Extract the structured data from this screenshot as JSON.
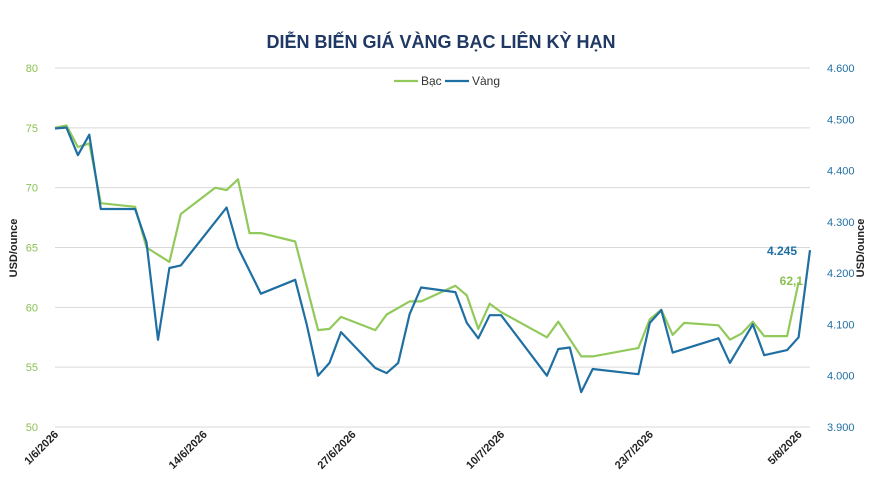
{
  "chart_data": {
    "type": "line",
    "title": "DIỄN BIẾN GIÁ VÀNG BẠC LIÊN KỲ HẠN",
    "ylabel_left": "USD/ounce",
    "ylabel_right": "USD/ounce",
    "ylim_left": [
      50,
      80
    ],
    "ylim_right": [
      3900,
      4600
    ],
    "yticks_left": [
      "50",
      "55",
      "60",
      "65",
      "70",
      "75",
      "80"
    ],
    "yticks_right": [
      "3.900",
      "4.000",
      "4.100",
      "4.200",
      "4.300",
      "4.400",
      "4.500",
      "4.600"
    ],
    "x_tick_labels": [
      "1/6/2026",
      "14/6/2026",
      "27/6/2026",
      "10/7/2026",
      "23/7/2026",
      "5/8/2026"
    ],
    "x_ticks": [
      "2026-06-01",
      "2026-06-14",
      "2026-06-27",
      "2026-07-10",
      "2026-07-23",
      "2026-08-05"
    ],
    "grid": true,
    "legend_position": "top-center",
    "colors": {
      "silver": "#92c95b",
      "gold": "#1f6fa3"
    },
    "series": [
      {
        "name": "Bạc",
        "axis": "left",
        "color": "#92c95b",
        "end_label": "62,1",
        "points": [
          [
            "2026-06-01",
            75.0
          ],
          [
            "2026-06-02",
            75.2
          ],
          [
            "2026-06-03",
            73.4
          ],
          [
            "2026-06-04",
            73.7
          ],
          [
            "2026-06-05",
            68.7
          ],
          [
            "2026-06-08",
            68.4
          ],
          [
            "2026-06-09",
            65.0
          ],
          [
            "2026-06-11",
            63.8
          ],
          [
            "2026-06-12",
            67.8
          ],
          [
            "2026-06-15",
            70.0
          ],
          [
            "2026-06-16",
            69.8
          ],
          [
            "2026-06-17",
            70.7
          ],
          [
            "2026-06-18",
            66.2
          ],
          [
            "2026-06-19",
            66.2
          ],
          [
            "2026-06-22",
            65.5
          ],
          [
            "2026-06-24",
            58.1
          ],
          [
            "2026-06-25",
            58.2
          ],
          [
            "2026-06-26",
            59.2
          ],
          [
            "2026-06-29",
            58.1
          ],
          [
            "2026-06-30",
            59.4
          ],
          [
            "2026-07-02",
            60.5
          ],
          [
            "2026-07-03",
            60.5
          ],
          [
            "2026-07-06",
            61.8
          ],
          [
            "2026-07-07",
            61.0
          ],
          [
            "2026-07-08",
            58.2
          ],
          [
            "2026-07-09",
            60.3
          ],
          [
            "2026-07-10",
            59.6
          ],
          [
            "2026-07-14",
            57.5
          ],
          [
            "2026-07-15",
            58.8
          ],
          [
            "2026-07-17",
            55.9
          ],
          [
            "2026-07-18",
            55.9
          ],
          [
            "2026-07-22",
            56.6
          ],
          [
            "2026-07-23",
            59.0
          ],
          [
            "2026-07-24",
            59.8
          ],
          [
            "2026-07-25",
            57.7
          ],
          [
            "2026-07-26",
            58.7
          ],
          [
            "2026-07-29",
            58.5
          ],
          [
            "2026-07-30",
            57.3
          ],
          [
            "2026-07-31",
            57.8
          ],
          [
            "2026-08-01",
            58.8
          ],
          [
            "2026-08-02",
            57.6
          ],
          [
            "2026-08-04",
            57.6
          ],
          [
            "2026-08-05",
            62.1
          ]
        ]
      },
      {
        "name": "Vàng",
        "axis": "right",
        "color": "#1f6fa3",
        "end_label": "4.245",
        "points": [
          [
            "2026-06-01",
            4482
          ],
          [
            "2026-06-02",
            4484
          ],
          [
            "2026-06-03",
            4430
          ],
          [
            "2026-06-04",
            4470
          ],
          [
            "2026-06-05",
            4325
          ],
          [
            "2026-06-08",
            4325
          ],
          [
            "2026-06-09",
            4260
          ],
          [
            "2026-06-10",
            4070
          ],
          [
            "2026-06-11",
            4210
          ],
          [
            "2026-06-12",
            4215
          ],
          [
            "2026-06-15",
            4300
          ],
          [
            "2026-06-16",
            4328
          ],
          [
            "2026-06-17",
            4250
          ],
          [
            "2026-06-19",
            4160
          ],
          [
            "2026-06-22",
            4187
          ],
          [
            "2026-06-23",
            4100
          ],
          [
            "2026-06-24",
            4000
          ],
          [
            "2026-06-25",
            4025
          ],
          [
            "2026-06-26",
            4085
          ],
          [
            "2026-06-29",
            4015
          ],
          [
            "2026-06-30",
            4005
          ],
          [
            "2026-07-01",
            4025
          ],
          [
            "2026-07-02",
            4120
          ],
          [
            "2026-07-03",
            4172
          ],
          [
            "2026-07-06",
            4163
          ],
          [
            "2026-07-07",
            4103
          ],
          [
            "2026-07-08",
            4073
          ],
          [
            "2026-07-09",
            4118
          ],
          [
            "2026-07-10",
            4118
          ],
          [
            "2026-07-14",
            4000
          ],
          [
            "2026-07-15",
            4052
          ],
          [
            "2026-07-16",
            4055
          ],
          [
            "2026-07-17",
            3968
          ],
          [
            "2026-07-18",
            4013
          ],
          [
            "2026-07-22",
            4003
          ],
          [
            "2026-07-23",
            4103
          ],
          [
            "2026-07-24",
            4128
          ],
          [
            "2026-07-25",
            4045
          ],
          [
            "2026-07-29",
            4073
          ],
          [
            "2026-07-30",
            4025
          ],
          [
            "2026-08-01",
            4100
          ],
          [
            "2026-08-02",
            4040
          ],
          [
            "2026-08-04",
            4050
          ],
          [
            "2026-08-05",
            4075
          ],
          [
            "2026-08-06",
            4245
          ]
        ]
      }
    ]
  }
}
